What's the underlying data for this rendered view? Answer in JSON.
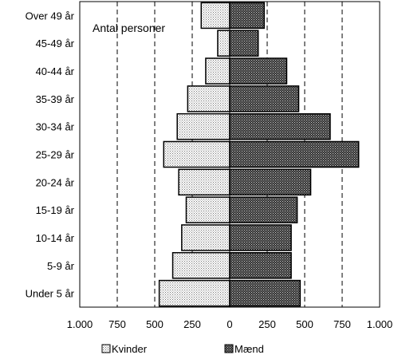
{
  "chart_data": {
    "type": "bar",
    "orientation": "horizontal-population-pyramid",
    "title": "Antal personer",
    "categories": [
      "Under 5 år",
      "5-9 år",
      "10-14 år",
      "15-19 år",
      "20-24 år",
      "25-29 år",
      "30-34 år",
      "35-39 år",
      "40-44 år",
      "45-49 år",
      "Over 49 år"
    ],
    "series": [
      {
        "name": "Kvinder",
        "side": "left",
        "values": [
          470,
          380,
          320,
          290,
          340,
          440,
          350,
          280,
          160,
          80,
          190
        ],
        "color": "#e4e4e4"
      },
      {
        "name": "Mænd",
        "side": "right",
        "values": [
          470,
          410,
          410,
          450,
          540,
          860,
          670,
          460,
          380,
          190,
          230
        ],
        "color": "#555555"
      }
    ],
    "xlim": [
      -1000,
      1000
    ],
    "x_ticks": [
      -1000,
      -750,
      -500,
      -250,
      0,
      250,
      500,
      750,
      1000
    ],
    "x_tick_labels": [
      "1.000",
      "750",
      "500",
      "250",
      "0",
      "250",
      "500",
      "750",
      "1.000"
    ],
    "grid": "vertical dashed",
    "legend": {
      "placement": "bottom",
      "entries": [
        "Kvinder",
        "Mænd"
      ]
    }
  }
}
